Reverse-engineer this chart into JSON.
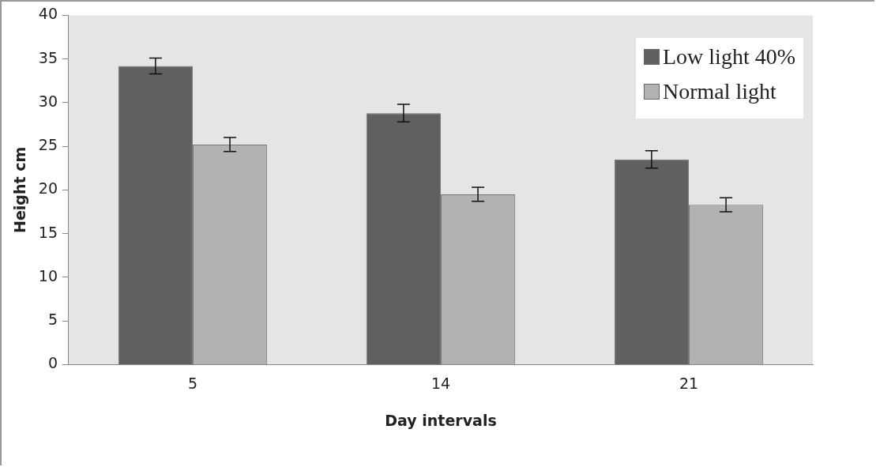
{
  "chart_data": {
    "type": "bar",
    "xlabel": "Day intervals",
    "ylabel": "Height cm",
    "categories": [
      "5",
      "14",
      "21"
    ],
    "series": [
      {
        "name": "Low light 40%",
        "color": "#606060",
        "values": [
          34.2,
          28.8,
          23.5
        ],
        "errors": [
          0.9,
          1.0,
          1.0
        ]
      },
      {
        "name": "Normal light",
        "color": "#b2b2b2",
        "values": [
          25.2,
          19.5,
          18.3
        ],
        "errors": [
          0.8,
          0.8,
          0.8
        ]
      }
    ],
    "ylim": [
      0,
      40
    ],
    "yticks": [
      0,
      5,
      10,
      15,
      20,
      25,
      30,
      35,
      40
    ],
    "grid": false,
    "legend": "top right"
  }
}
